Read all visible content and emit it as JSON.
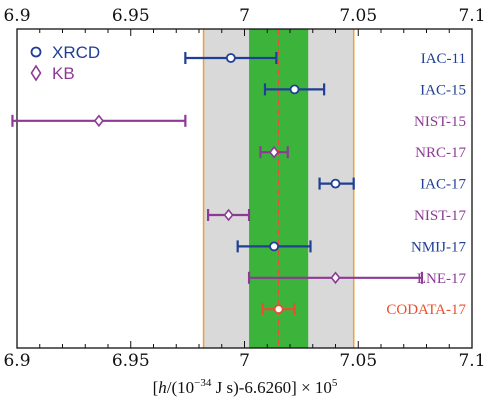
{
  "chart_data": {
    "type": "scatter",
    "xlabel_parts": [
      "[",
      "h",
      "/(10",
      "−34",
      " J s)-6.6260] × 10",
      "5"
    ],
    "xlim": [
      6.9,
      7.1
    ],
    "ticks": [
      "6.9",
      "6.95",
      "7",
      "7.05",
      "7.1"
    ],
    "tick_values": [
      6.9,
      6.95,
      7.0,
      7.05,
      7.1
    ],
    "grey_band": [
      6.982,
      7.048
    ],
    "green_band": [
      7.002,
      7.028
    ],
    "reference_value": 7.015,
    "legend": [
      {
        "name": "XRCD",
        "marker": "circle",
        "color": "#1f3f94"
      },
      {
        "name": "KB",
        "marker": "diamond",
        "color": "#8c3a96"
      }
    ],
    "colors": {
      "xrcd": "#1f3f94",
      "kb": "#8c3a96",
      "codata": "#e8502d",
      "grey_band": "#d9d9d9",
      "green_band": "#3cb43c",
      "band_edge": "#f0a030",
      "ref_line": "#e8502d"
    },
    "series": [
      {
        "name": "IAC-11",
        "group": "XRCD",
        "value": 6.994,
        "low": 6.974,
        "high": 7.014
      },
      {
        "name": "IAC-15",
        "group": "XRCD",
        "value": 7.022,
        "low": 7.009,
        "high": 7.035
      },
      {
        "name": "NIST-15",
        "group": "KB",
        "value": 6.936,
        "low": 6.898,
        "high": 6.974
      },
      {
        "name": "NRC-17",
        "group": "KB",
        "value": 7.013,
        "low": 7.007,
        "high": 7.019
      },
      {
        "name": "IAC-17",
        "group": "XRCD",
        "value": 7.04,
        "low": 7.033,
        "high": 7.048
      },
      {
        "name": "NIST-17",
        "group": "KB",
        "value": 6.993,
        "low": 6.984,
        "high": 7.002
      },
      {
        "name": "NMIJ-17",
        "group": "XRCD",
        "value": 7.013,
        "low": 6.997,
        "high": 7.029
      },
      {
        "name": "LNE-17",
        "group": "KB",
        "value": 7.04,
        "low": 7.002,
        "high": 7.078
      },
      {
        "name": "CODATA-17",
        "group": "CODATA",
        "value": 7.015,
        "low": 7.008,
        "high": 7.022
      }
    ]
  }
}
